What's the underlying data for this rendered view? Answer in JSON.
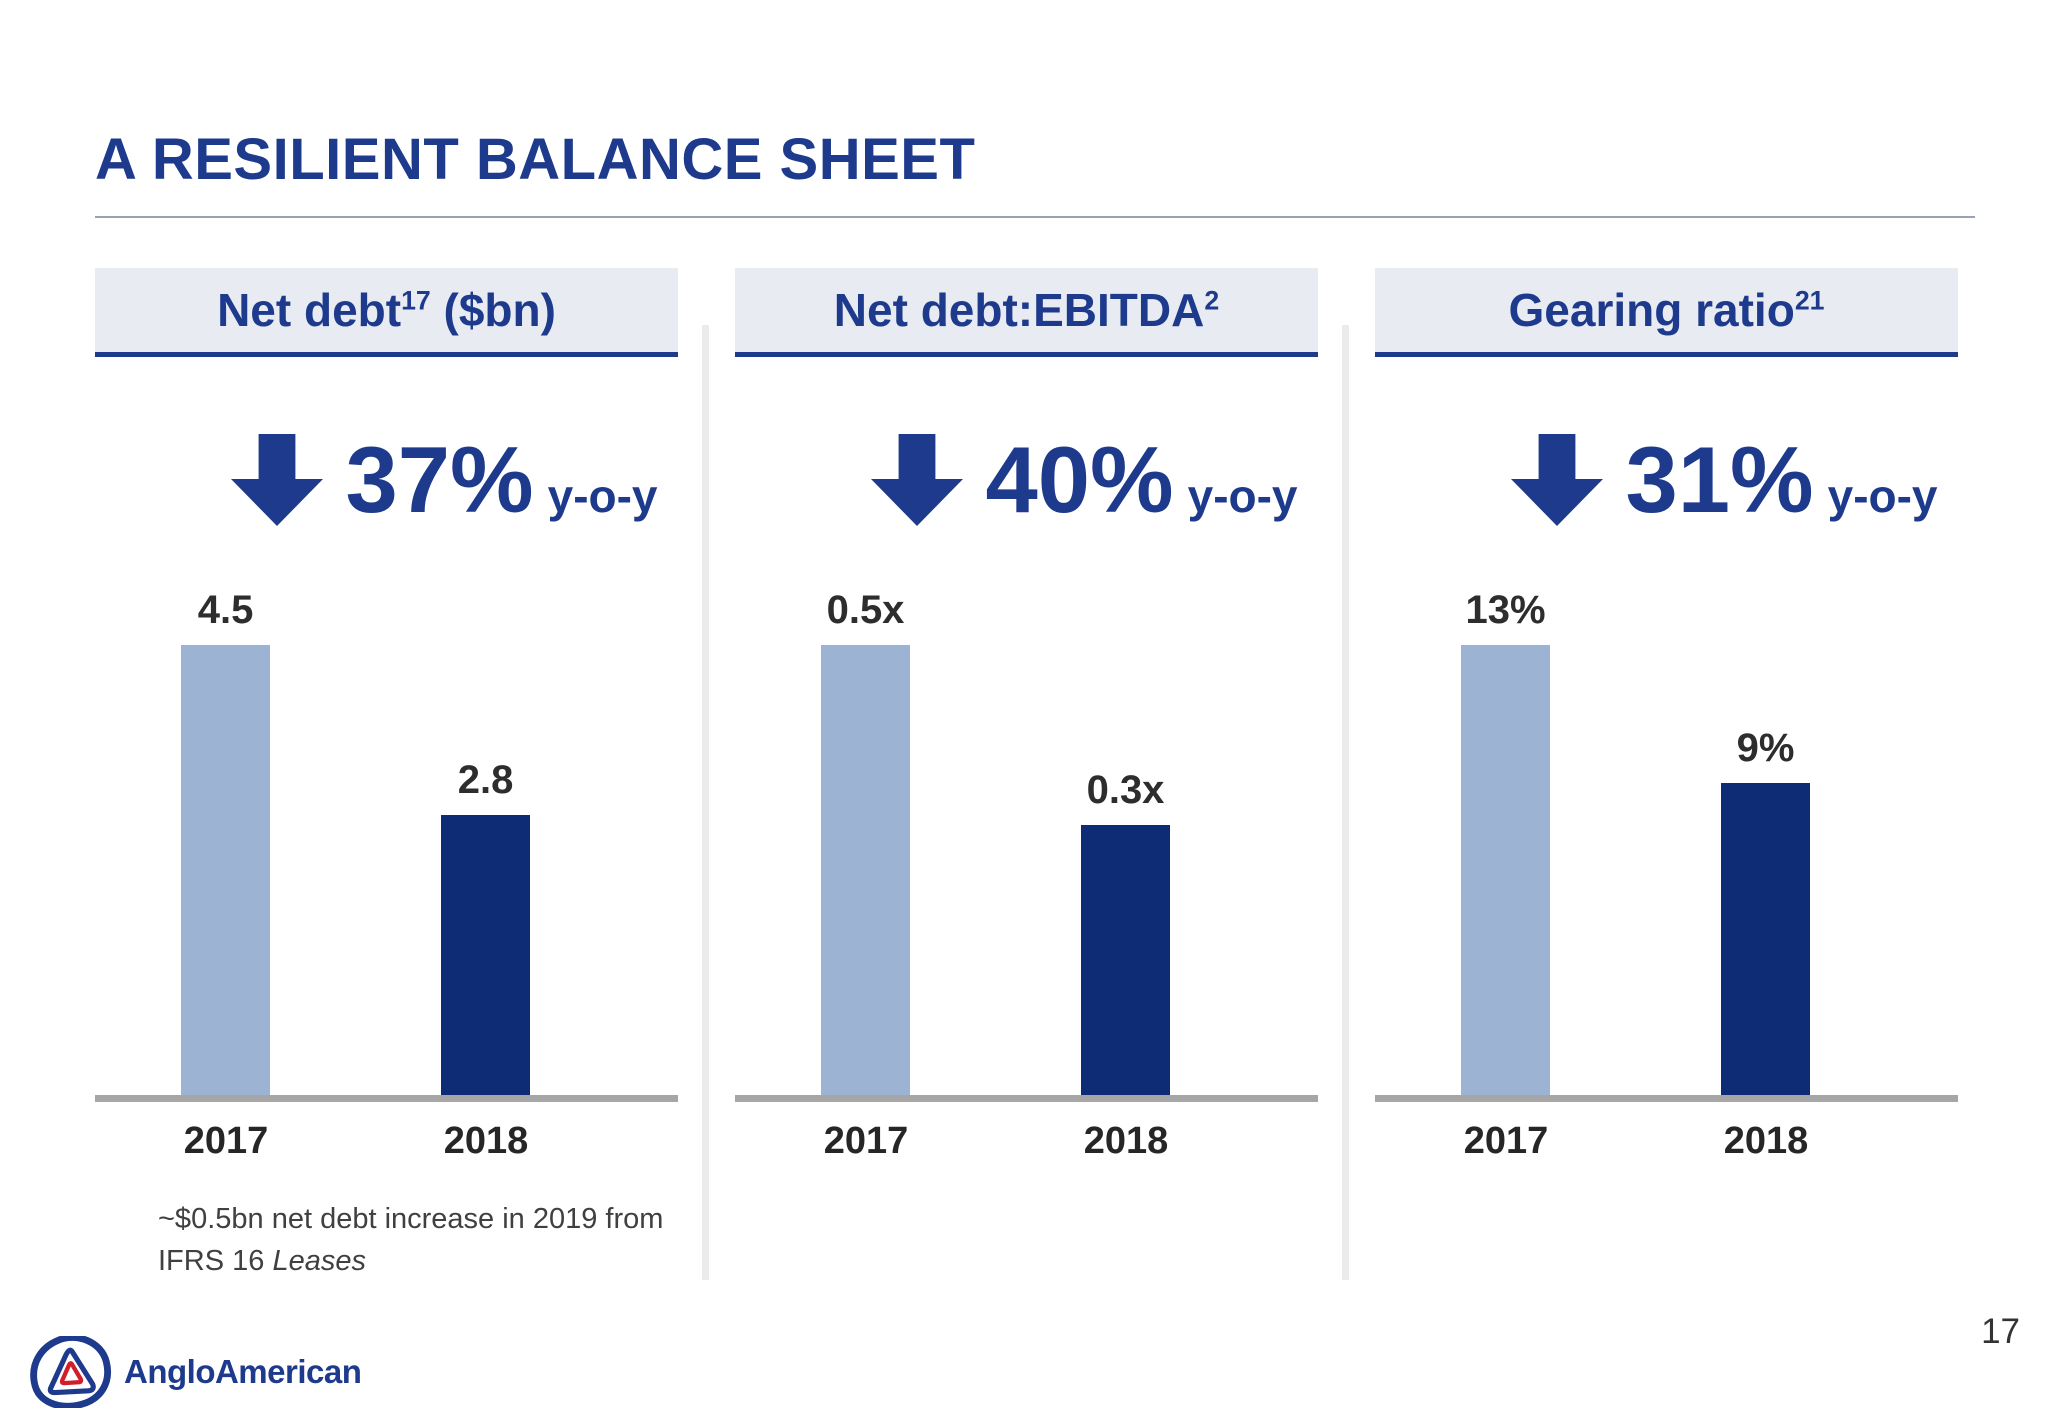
{
  "slide": {
    "title": "A RESILIENT BALANCE SHEET",
    "page_number": "17",
    "logo_text": "AngloAmerican",
    "footnote": {
      "line1": "~$0.5bn net debt increase in 2019 from",
      "line2_regular": "IFRS 16 ",
      "line2_italic": "Leases"
    }
  },
  "colors": {
    "navy_text": "#1d3a8c",
    "bar_2017_light_blue": "#9db3d3",
    "bar_2018_navy": "#0e2b76",
    "header_box_bg": "#e9ebf2",
    "axis_gray": "#a6a6a6",
    "logo_red": "#d21e2b"
  },
  "chart_data": [
    {
      "type": "bar",
      "title_main": "Net debt",
      "title_sup": "17",
      "title_suffix": " ($bn)",
      "change_value": "37%",
      "change_suffix": "y-o-y",
      "change_direction": "down",
      "categories": [
        "2017",
        "2018"
      ],
      "values": [
        4.5,
        2.8
      ],
      "value_labels": [
        "4.5",
        "2.8"
      ],
      "ylim": [
        0,
        4.5
      ],
      "bar_colors": [
        "#9db3d3",
        "#0e2b76"
      ],
      "grid": false,
      "legend": false
    },
    {
      "type": "bar",
      "title_main": "Net debt:EBITDA",
      "title_sup": "2",
      "title_suffix": "",
      "change_value": "40%",
      "change_suffix": "y-o-y",
      "change_direction": "down",
      "categories": [
        "2017",
        "2018"
      ],
      "values": [
        0.5,
        0.3
      ],
      "value_labels": [
        "0.5x",
        "0.3x"
      ],
      "ylim": [
        0,
        0.5
      ],
      "bar_colors": [
        "#9db3d3",
        "#0e2b76"
      ],
      "grid": false,
      "legend": false
    },
    {
      "type": "bar",
      "title_main": "Gearing ratio",
      "title_sup": "21",
      "title_suffix": "",
      "change_value": "31%",
      "change_suffix": "y-o-y",
      "change_direction": "down",
      "categories": [
        "2017",
        "2018"
      ],
      "values": [
        13,
        9
      ],
      "value_labels": [
        "13%",
        "9%"
      ],
      "ylim": [
        0,
        13
      ],
      "bar_colors": [
        "#9db3d3",
        "#0e2b76"
      ],
      "grid": false,
      "legend": false
    }
  ]
}
